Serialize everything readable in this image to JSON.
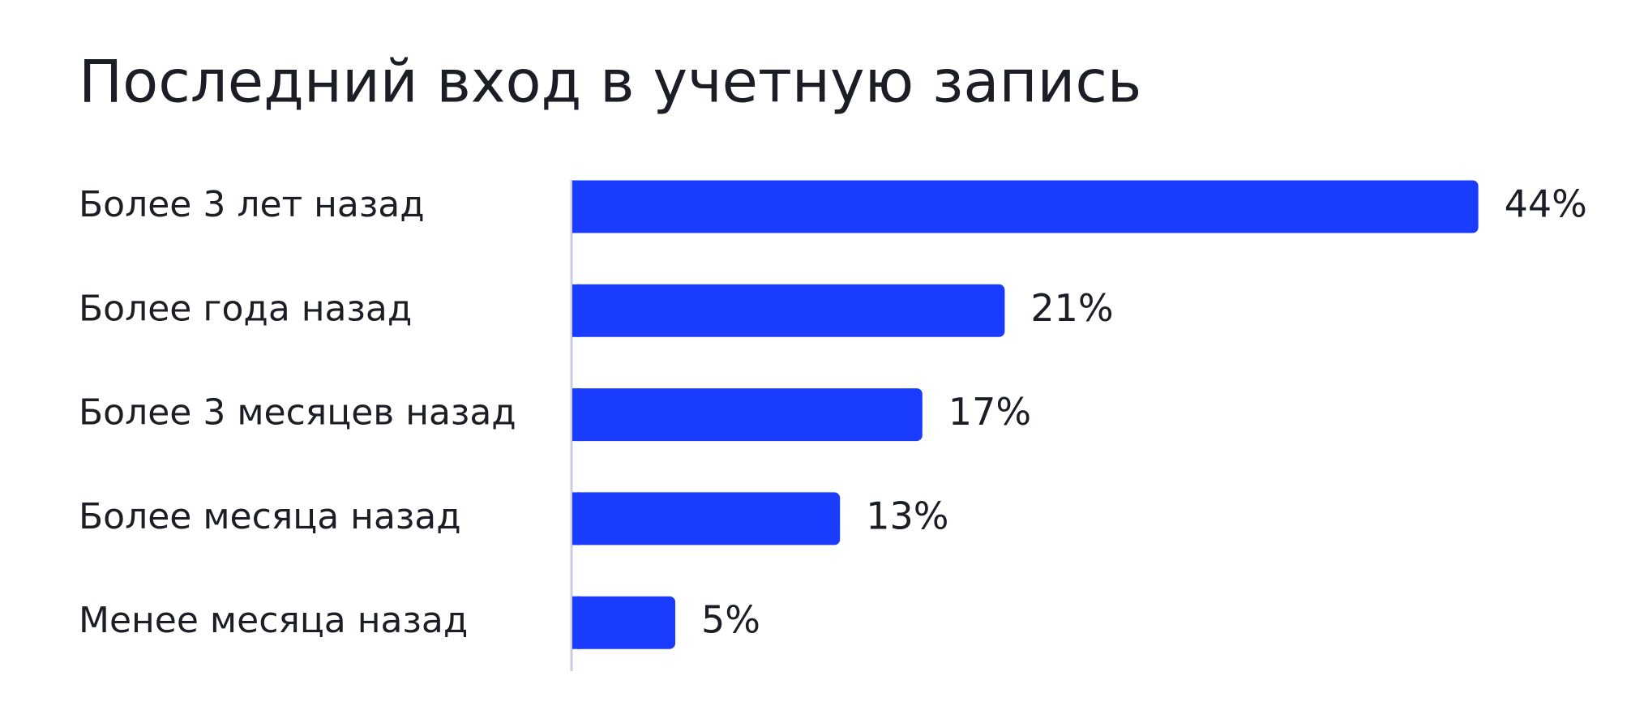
{
  "chart_data": {
    "type": "bar",
    "orientation": "horizontal",
    "title": "Последний вход в учетную запись",
    "categories": [
      "Более 3 лет назад",
      "Более года назад",
      "Более 3 месяцев назад",
      "Более месяца назад",
      "Менее месяца назад"
    ],
    "values": [
      44,
      21,
      17,
      13,
      5
    ],
    "value_labels": [
      "44%",
      "21%",
      "17%",
      "13%",
      "5%"
    ],
    "color": "#1a3cff"
  }
}
